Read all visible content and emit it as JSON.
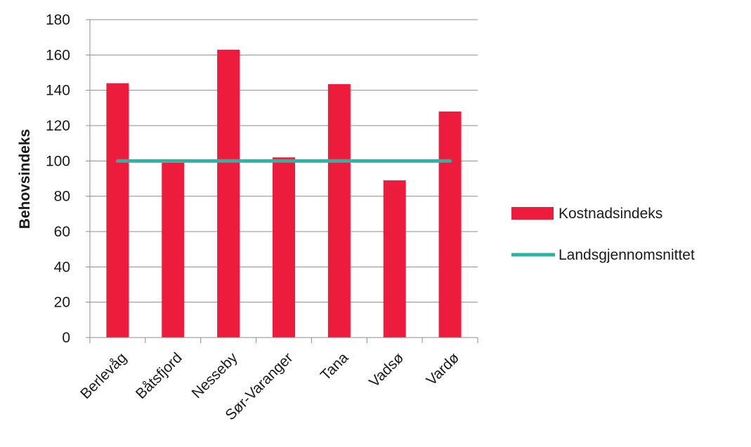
{
  "chart_data": {
    "type": "bar",
    "title": "",
    "xlabel": "",
    "ylabel": "Behovsindeks",
    "ylim": [
      0,
      180
    ],
    "yticks": [
      0,
      20,
      40,
      60,
      80,
      100,
      120,
      140,
      160,
      180
    ],
    "grid": true,
    "legend_position": "right",
    "categories": [
      "Berlevåg",
      "Båtsfjord",
      "Nesseby",
      "Sør-Varanger",
      "Tana",
      "Vadsø",
      "Vardø"
    ],
    "series": [
      {
        "name": "Kostnadsindeks",
        "type": "bar",
        "color": "#ED1C3C",
        "values": [
          144,
          99,
          163,
          102,
          143.5,
          89,
          128
        ]
      },
      {
        "name": "Landsgjennomsnittet",
        "type": "line",
        "color": "#2BB3A3",
        "values": [
          100,
          100,
          100,
          100,
          100,
          100,
          100
        ]
      }
    ]
  }
}
